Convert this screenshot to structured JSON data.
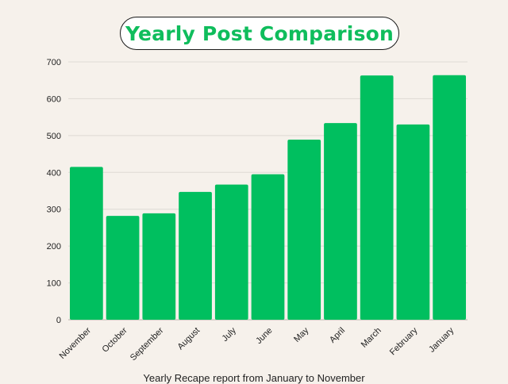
{
  "chart_data": {
    "type": "bar",
    "title": "Yearly Post Comparison",
    "caption": "Yearly Recape report from January to November",
    "categories": [
      "November",
      "October",
      "September",
      "August",
      "July",
      "June",
      "May",
      "April",
      "March",
      "February",
      "January"
    ],
    "values": [
      415,
      282,
      289,
      347,
      367,
      395,
      489,
      534,
      663,
      530,
      664
    ],
    "ylim": [
      0,
      700
    ],
    "yticks": [
      0,
      100,
      200,
      300,
      400,
      500,
      600,
      700
    ],
    "grid": true,
    "bar_color": "#00bf5f"
  }
}
